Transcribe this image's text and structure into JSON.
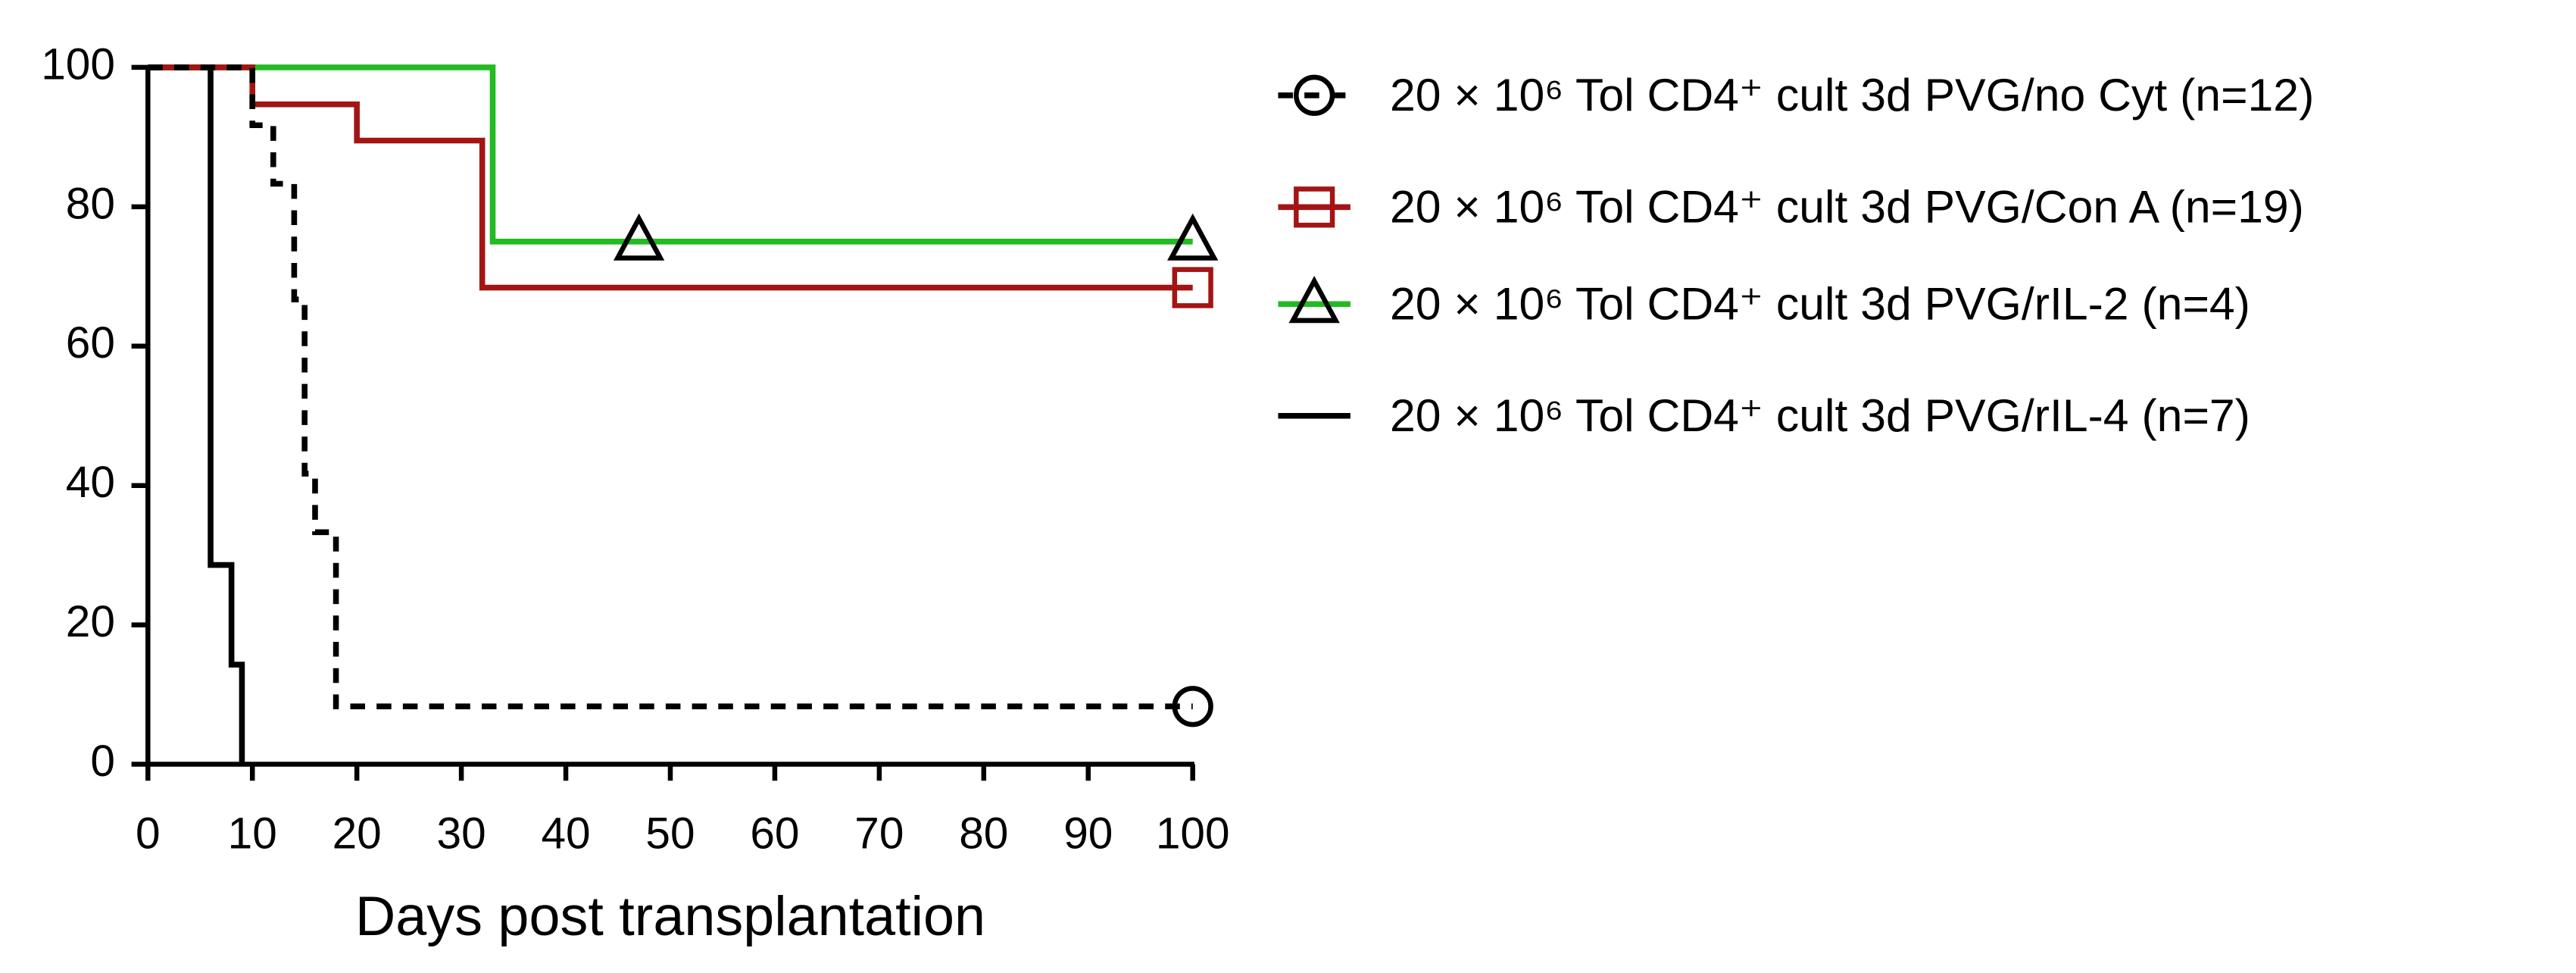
{
  "chart_data": {
    "type": "step",
    "xlabel": "Days post transplantation",
    "xlim": [
      0,
      100
    ],
    "xticks": [
      0,
      10,
      20,
      30,
      40,
      50,
      60,
      70,
      80,
      90,
      100
    ],
    "ylim": [
      0,
      100
    ],
    "yticks": [
      0,
      20,
      40,
      60,
      80,
      100
    ],
    "legend": "right",
    "series": [
      {
        "name": "20 × 10⁶ Tol CD4⁺ cult 3d PVG/no Cyt (n=12)",
        "color": "#000000",
        "line_style": "dashed",
        "marker": "circle",
        "x": [
          0,
          10,
          12,
          14,
          15,
          16,
          18,
          100
        ],
        "values": [
          100,
          91.7,
          83.3,
          66.7,
          41.7,
          33.3,
          8.3,
          8.3
        ],
        "censor_x": [
          100
        ],
        "censor_values": [
          8.3
        ]
      },
      {
        "name": "20 × 10⁶ Tol CD4⁺ cult 3d PVG/Con A (n=19)",
        "color": "#a31515",
        "line_style": "solid",
        "marker": "square",
        "x": [
          0,
          10,
          20,
          32,
          100
        ],
        "values": [
          100,
          94.7,
          89.5,
          68.4,
          68.4
        ],
        "censor_x": [
          100
        ],
        "censor_values": [
          68.4
        ]
      },
      {
        "name": "20 × 10⁶ Tol CD4⁺ cult 3d PVG/rIL-2 (n=4)",
        "color": "#22bb22",
        "line_style": "solid",
        "marker": "triangle",
        "x": [
          0,
          33,
          100
        ],
        "values": [
          100,
          75,
          75
        ],
        "censor_x": [
          47,
          100
        ],
        "censor_values": [
          75,
          75
        ]
      },
      {
        "name": "20 × 10⁶ Tol CD4⁺ cult 3d PVG/rIL-4 (n=7)",
        "color": "#000000",
        "line_style": "solid",
        "marker": "none",
        "x": [
          0,
          6,
          8,
          9
        ],
        "values": [
          100,
          28.6,
          14.3,
          0
        ],
        "censor_x": [],
        "censor_values": []
      }
    ]
  }
}
